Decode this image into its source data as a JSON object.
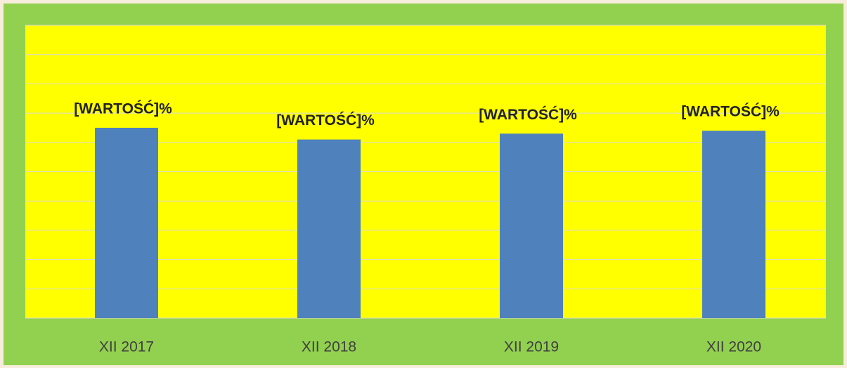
{
  "chart_data": {
    "type": "bar",
    "categories": [
      "XII 2017",
      "XII 2018",
      "XII 2019",
      "XII 2020"
    ],
    "values": [
      65,
      61,
      63,
      64
    ],
    "value_labels": [
      "[WARTOŚĆ]%",
      "[WARTOŚĆ]%",
      "[WARTOŚĆ]%",
      "[WARTOŚĆ]%"
    ],
    "color": "#4f81bd",
    "ylim": [
      0,
      100
    ],
    "yticks": [
      0,
      10,
      20,
      30,
      40,
      50,
      60,
      70,
      80,
      90,
      100
    ],
    "grid": true,
    "show_tick_labels": false,
    "plot_background": "#ffff00",
    "chart_background": "#92d050"
  }
}
